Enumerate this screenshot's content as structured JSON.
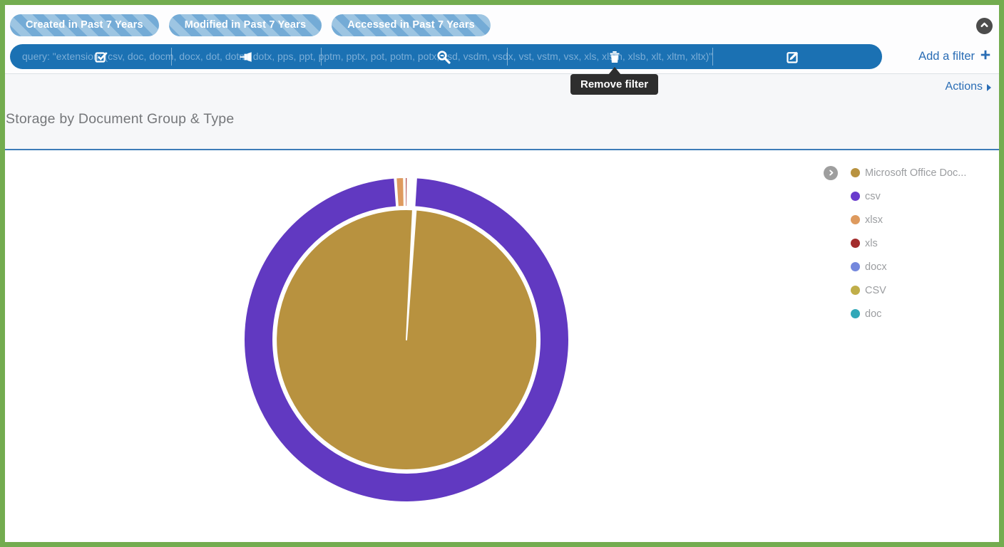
{
  "window": {
    "border_color": "#73ac4f"
  },
  "filter_bar": {
    "pills": [
      "Created in Past 7 Years",
      "Modified in Past 7 Years",
      "Accessed in Past 7 Years"
    ],
    "query": "query: \"extension: (csv, doc, docm, docx, dot, dotm, dotx, pps, ppt, pptm, pptx, pot, potm, potx, vsd, vsdm, vsdx, vst, vstm, vsx, xls, xlsm, xlsb, xlt, xltm, xltx)\"",
    "query_icons": [
      "checkbox-icon",
      "pin-icon",
      "zoom-icon",
      "trash-icon",
      "edit-icon"
    ],
    "add_filter_label": "Add a filter"
  },
  "tooltip": {
    "text": "Remove filter"
  },
  "actions": {
    "label": "Actions"
  },
  "panel": {
    "title": "Storage by Document Group & Type"
  },
  "chart_data": {
    "type": "sunburst",
    "title": "Storage by Document Group & Type",
    "legend_position": "right",
    "rings": {
      "inner": {
        "label": "Microsoft Office Doc...",
        "color": "#b8923f",
        "share_pct": 100
      },
      "outer_series": [
        {
          "name": "csv",
          "color": "#6139c1",
          "share_pct": 98.68
        },
        {
          "name": "xlsx",
          "color": "#de9a5e",
          "share_pct": 0.77
        },
        {
          "name": "xls",
          "color": "#a32c2c",
          "share_pct": 0.22
        },
        {
          "name": "docx",
          "color": "#7488dd",
          "share_pct": 0.14
        },
        {
          "name": "CSV",
          "color": "#c0ae49",
          "share_pct": 0.1
        },
        {
          "name": "doc",
          "color": "#31a8b8",
          "share_pct": 0.09
        }
      ]
    },
    "legend": [
      {
        "label": "Microsoft Office Doc...",
        "color": "#b8923f",
        "expandable": true
      },
      {
        "label": "csv",
        "color": "#6a3ccd"
      },
      {
        "label": "xlsx",
        "color": "#de9a5e"
      },
      {
        "label": "xls",
        "color": "#a32c2c"
      },
      {
        "label": "docx",
        "color": "#7488dd"
      },
      {
        "label": "CSV",
        "color": "#c0ae49"
      },
      {
        "label": "doc",
        "color": "#31a8b8"
      }
    ],
    "geometry": {
      "start_angle_deg": 3.5,
      "gap_deg": 0.5,
      "inner_gap_deg": 0.7
    }
  }
}
